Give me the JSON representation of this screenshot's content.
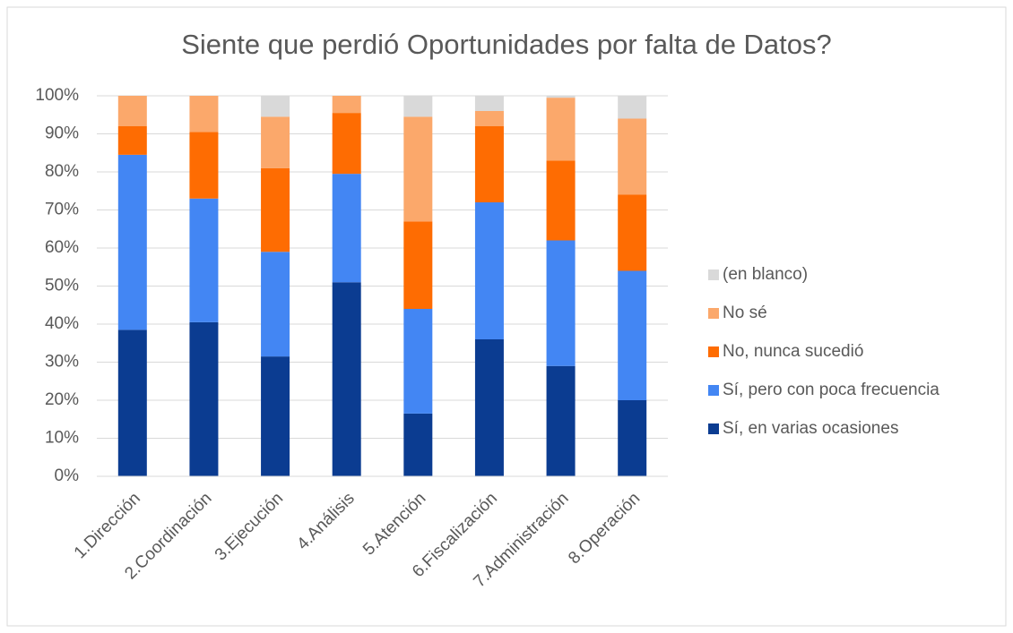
{
  "chart_data": {
    "type": "stacked_bar",
    "title": "Siente que perdió Oportunidades por falta de Datos?",
    "categories": [
      "1.Dirección",
      "2.Coordinación",
      "3.Ejecución",
      "4.Análisis",
      "5.Atención",
      "6.Fiscalización",
      "7.Administración",
      "8.Operación"
    ],
    "series": [
      {
        "name": "Sí, en varias ocasiones",
        "color": "#0b3c91",
        "values": [
          38.5,
          40.5,
          31.5,
          51,
          16.5,
          36,
          29,
          20
        ]
      },
      {
        "name": "Sí, pero con poca frecuencia",
        "color": "#4386f3",
        "values": [
          46,
          32.5,
          27.5,
          28.5,
          27.5,
          36,
          33,
          34
        ]
      },
      {
        "name": "No, nunca sucedió",
        "color": "#fe6c02",
        "values": [
          7.5,
          17.5,
          22,
          16,
          23,
          20,
          21,
          20
        ]
      },
      {
        "name": "No sé",
        "color": "#fba86b",
        "values": [
          8,
          9.5,
          13.5,
          4.5,
          27.5,
          4,
          16.5,
          20
        ]
      },
      {
        "name": "(en blanco)",
        "color": "#d9d9d9",
        "values": [
          0,
          0,
          5.5,
          0,
          5.5,
          4,
          0.5,
          6
        ]
      }
    ],
    "ylim": [
      0,
      100
    ],
    "yticks": [
      {
        "value": 0,
        "label": "0%"
      },
      {
        "value": 10,
        "label": "10%"
      },
      {
        "value": 20,
        "label": "20%"
      },
      {
        "value": 30,
        "label": "30%"
      },
      {
        "value": 40,
        "label": "40%"
      },
      {
        "value": 50,
        "label": "50%"
      },
      {
        "value": 60,
        "label": "60%"
      },
      {
        "value": 70,
        "label": "70%"
      },
      {
        "value": 80,
        "label": "80%"
      },
      {
        "value": 90,
        "label": "90%"
      },
      {
        "value": 100,
        "label": "100%"
      }
    ],
    "grid": true,
    "legend": "right"
  }
}
